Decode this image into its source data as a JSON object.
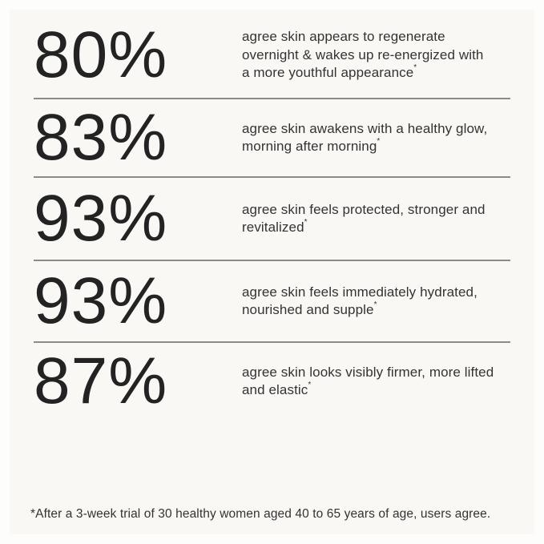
{
  "theme": {
    "background": "#f9f8f5",
    "frame": "#fdfdfc",
    "divider": "#8b8b8b",
    "heading_color": "#232323",
    "body_color": "#333333"
  },
  "stats": [
    {
      "percent": "80%",
      "claim": "agree skin appears to regenerate\novernight & wakes up re-energized with\na more youthful appearance",
      "marker": "*"
    },
    {
      "percent": "83%",
      "claim": "agree skin awakens with a healthy glow,\nmorning after morning",
      "marker": "*"
    },
    {
      "percent": "93%",
      "claim": "agree skin feels protected, stronger and\nrevitalized",
      "marker": "*"
    },
    {
      "percent": "93%",
      "claim": "agree skin feels immediately hydrated,\nnourished and supple",
      "marker": "*"
    },
    {
      "percent": "87%",
      "claim": "agree skin looks visibly firmer, more lifted\nand elastic",
      "marker": "*"
    }
  ],
  "footnote": "*After a 3-week trial of 30 healthy women aged 40 to 65 years of age, users agree."
}
